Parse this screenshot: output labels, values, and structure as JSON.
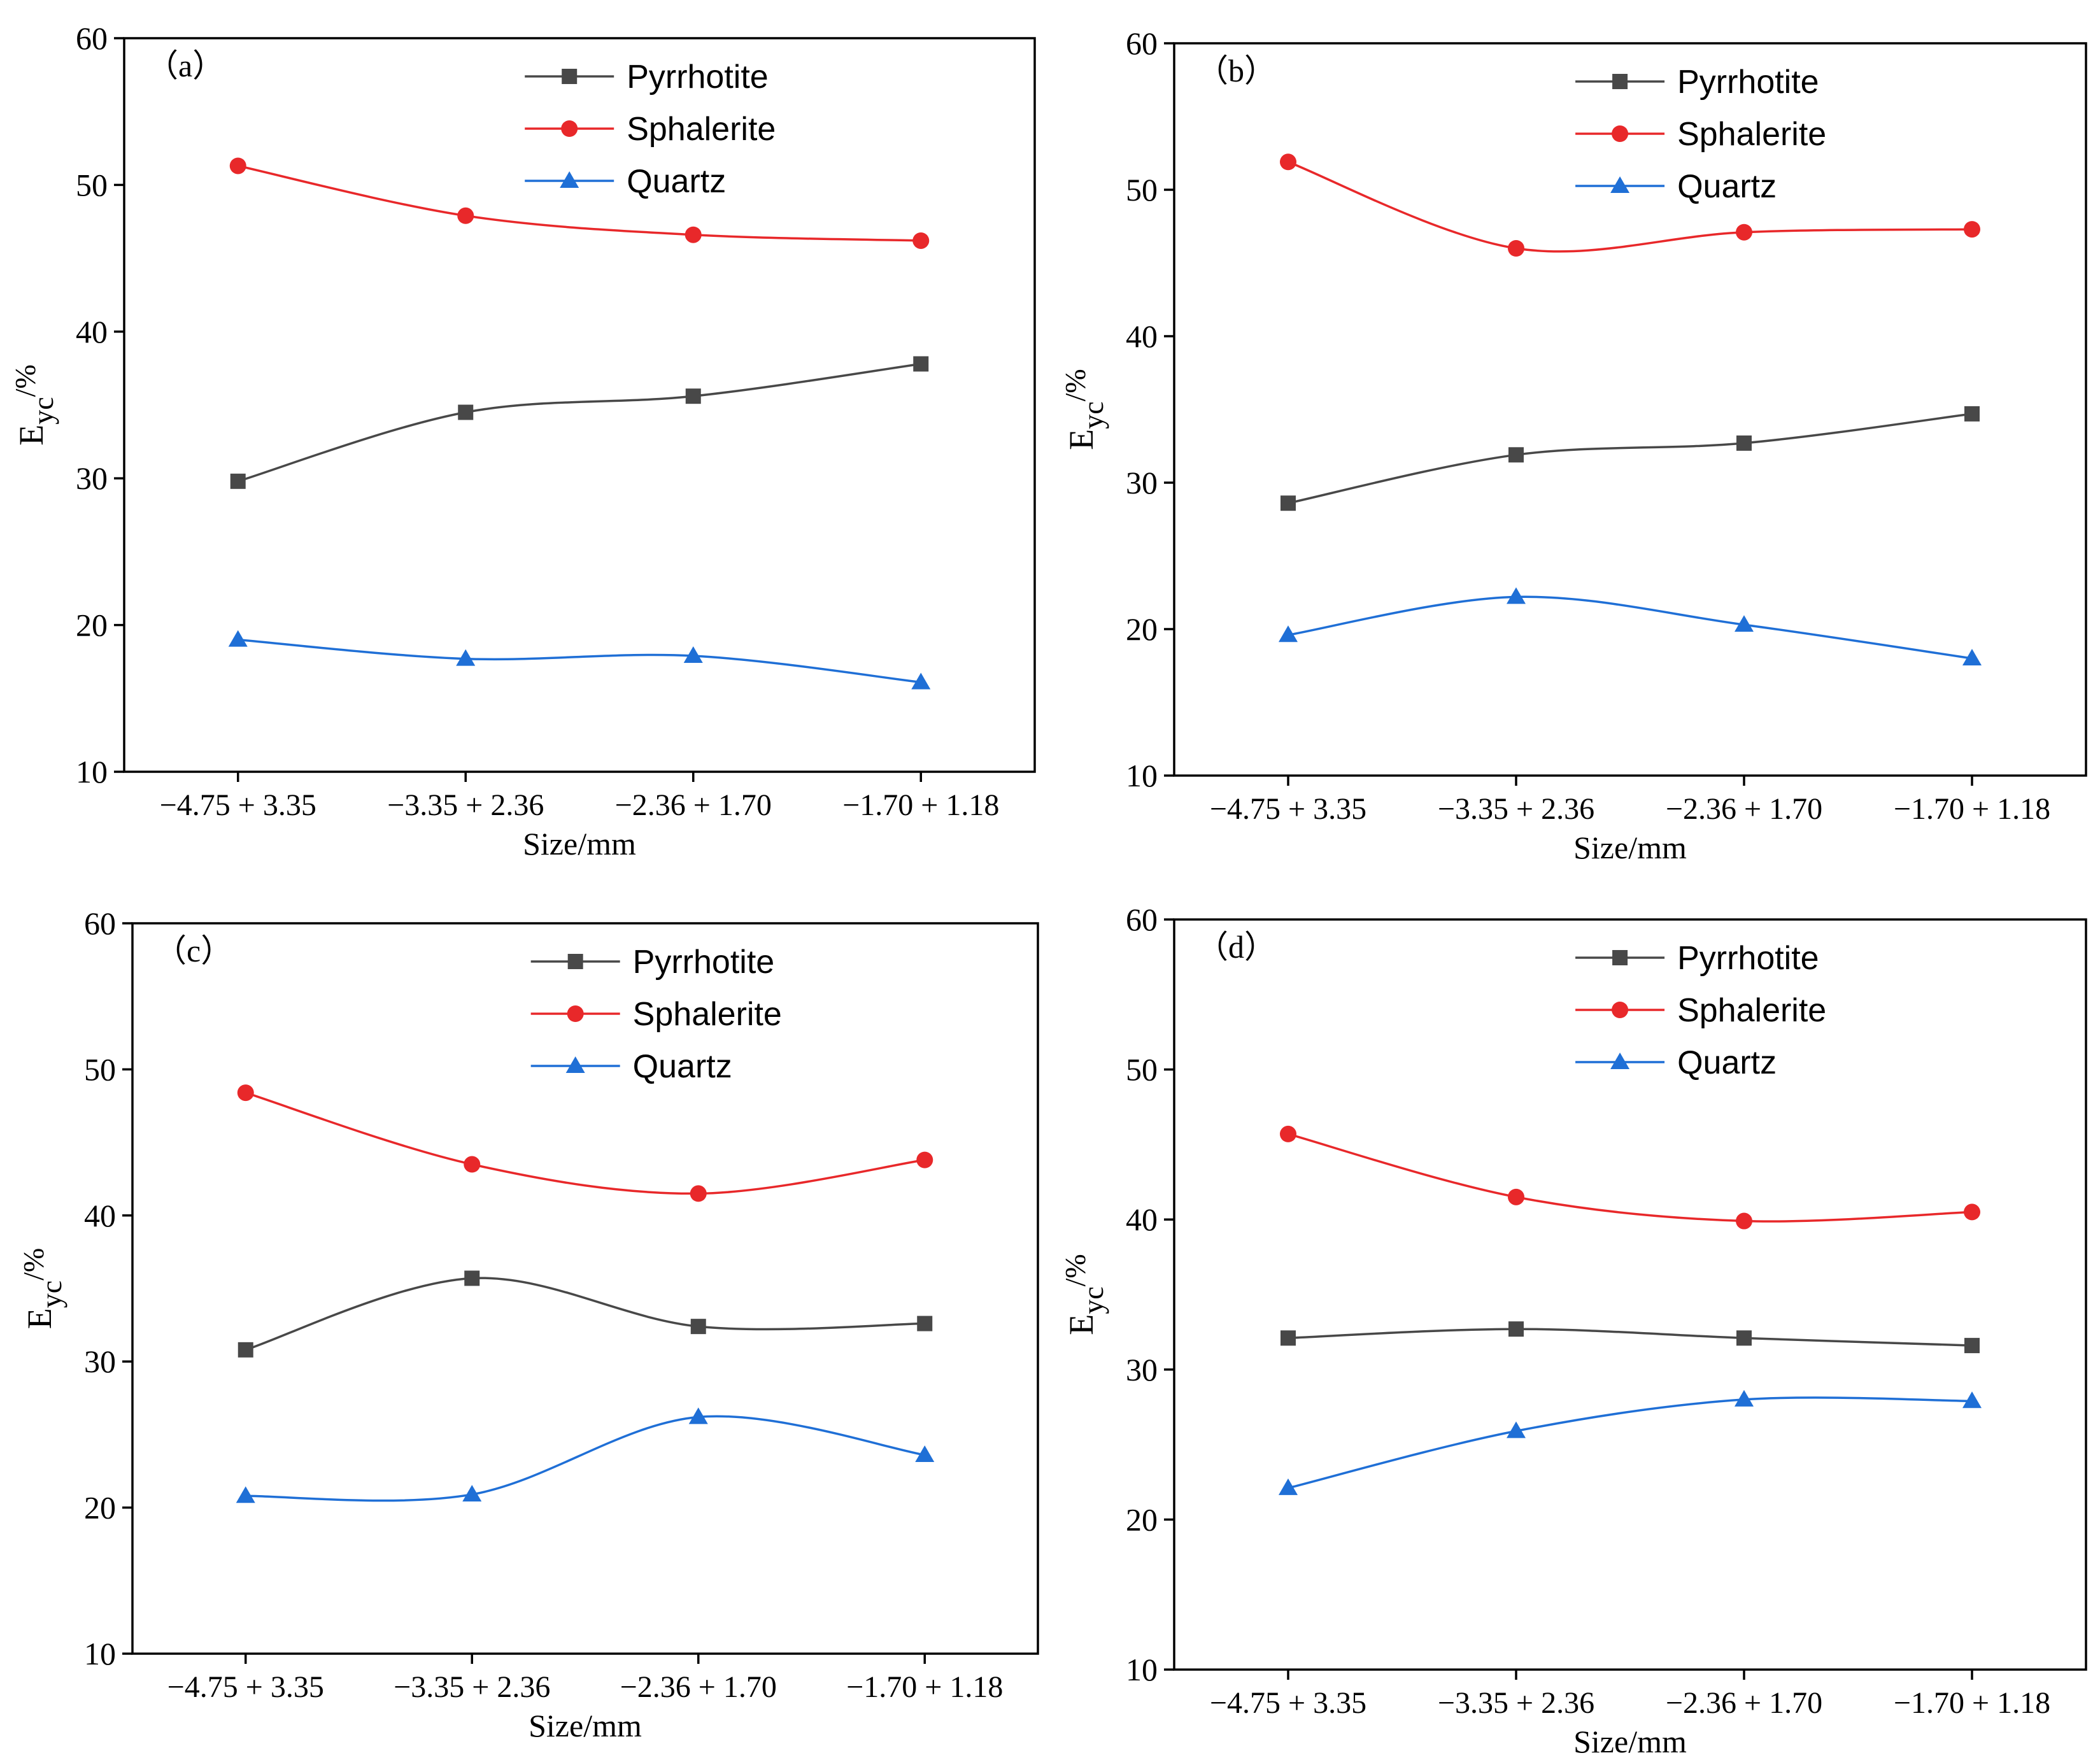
{
  "colors": {
    "pyrrhotite": "#484848",
    "sphalerite": "#e8282a",
    "quartz": "#1f6fd6",
    "axis": "#000000"
  },
  "chart_data": [
    {
      "type": "line",
      "panel_label": "（a）",
      "categories": [
        "−4.75 + 3.35",
        "−3.35 + 2.36",
        "−2.36 + 1.70",
        "−1.70 + 1.18"
      ],
      "series": [
        {
          "name": "Pyrrhotite",
          "marker": "square",
          "values": [
            29.8,
            34.5,
            35.6,
            37.8
          ]
        },
        {
          "name": "Sphalerite",
          "marker": "circle",
          "values": [
            51.3,
            47.9,
            46.6,
            46.2
          ]
        },
        {
          "name": "Quartz",
          "marker": "triangle",
          "values": [
            19.0,
            17.7,
            17.9,
            16.1
          ]
        }
      ],
      "xlabel": "Size/mm",
      "ylabel_main": "E",
      "ylabel_sub": "yc",
      "ylabel_unit": "/%",
      "ylim": [
        10,
        60
      ],
      "yticks": [
        "10",
        "20",
        "30",
        "40",
        "50",
        "60"
      ],
      "legend_position": "top-right"
    },
    {
      "type": "line",
      "panel_label": "（b）",
      "categories": [
        "−4.75 + 3.35",
        "−3.35 + 2.36",
        "−2.36 + 1.70",
        "−1.70 + 1.18"
      ],
      "series": [
        {
          "name": "Pyrrhotite",
          "marker": "square",
          "values": [
            28.6,
            31.9,
            32.7,
            34.7
          ]
        },
        {
          "name": "Sphalerite",
          "marker": "circle",
          "values": [
            51.9,
            46.0,
            47.1,
            47.3
          ]
        },
        {
          "name": "Quartz",
          "marker": "triangle",
          "values": [
            19.6,
            22.2,
            20.3,
            18.0
          ]
        }
      ],
      "xlabel": "Size/mm",
      "ylabel_main": "E",
      "ylabel_sub": "yc",
      "ylabel_unit": "/%",
      "ylim": [
        10,
        60
      ],
      "yticks": [
        "10",
        "20",
        "30",
        "40",
        "50",
        "60"
      ],
      "legend_position": "top-right"
    },
    {
      "type": "line",
      "panel_label": "（c）",
      "categories": [
        "−4.75 + 3.35",
        "−3.35 + 2.36",
        "−2.36 + 1.70",
        "−1.70 + 1.18"
      ],
      "series": [
        {
          "name": "Pyrrhotite",
          "marker": "square",
          "values": [
            30.8,
            35.7,
            32.4,
            32.6
          ]
        },
        {
          "name": "Sphalerite",
          "marker": "circle",
          "values": [
            48.4,
            43.5,
            41.5,
            43.8
          ]
        },
        {
          "name": "Quartz",
          "marker": "triangle",
          "values": [
            20.8,
            20.9,
            26.2,
            23.6
          ]
        }
      ],
      "xlabel": "Size/mm",
      "ylabel_main": "E",
      "ylabel_sub": "yc",
      "ylabel_unit": "/%",
      "ylim": [
        10,
        60
      ],
      "yticks": [
        "10",
        "20",
        "30",
        "40",
        "50",
        "60"
      ],
      "legend_position": "top-right"
    },
    {
      "type": "line",
      "panel_label": "（d）",
      "categories": [
        "−4.75 + 3.35",
        "−3.35 + 2.36",
        "−2.36 + 1.70",
        "−1.70 + 1.18"
      ],
      "series": [
        {
          "name": "Pyrrhotite",
          "marker": "square",
          "values": [
            32.1,
            32.7,
            32.1,
            31.6
          ]
        },
        {
          "name": "Sphalerite",
          "marker": "circle",
          "values": [
            45.7,
            41.5,
            39.9,
            40.5
          ]
        },
        {
          "name": "Quartz",
          "marker": "triangle",
          "values": [
            22.1,
            25.9,
            28.0,
            27.9
          ]
        }
      ],
      "xlabel": "Size/mm",
      "ylabel_main": "E",
      "ylabel_sub": "yc",
      "ylabel_unit": "/%",
      "ylim": [
        10,
        60
      ],
      "yticks": [
        "10",
        "20",
        "30",
        "40",
        "50",
        "60"
      ],
      "legend_position": "top-right"
    }
  ]
}
